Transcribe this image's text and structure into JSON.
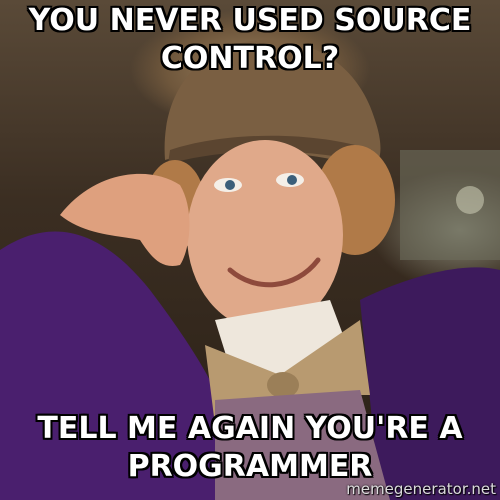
{
  "meme": {
    "top_caption_line1": "YOU NEVER USED SOURCE",
    "top_caption_line2": "CONTROL?",
    "bottom_caption_line1": "TELL ME AGAIN YOU'RE A",
    "bottom_caption_line2": "PROGRAMMER",
    "watermark": "memegenerator.net"
  },
  "colors": {
    "caption_text": "#ffffff",
    "caption_outline": "#000000",
    "jacket_purple": "#4a1f6e",
    "hat_brown": "#7a5f42",
    "bowtie_tan": "#b89a70"
  }
}
